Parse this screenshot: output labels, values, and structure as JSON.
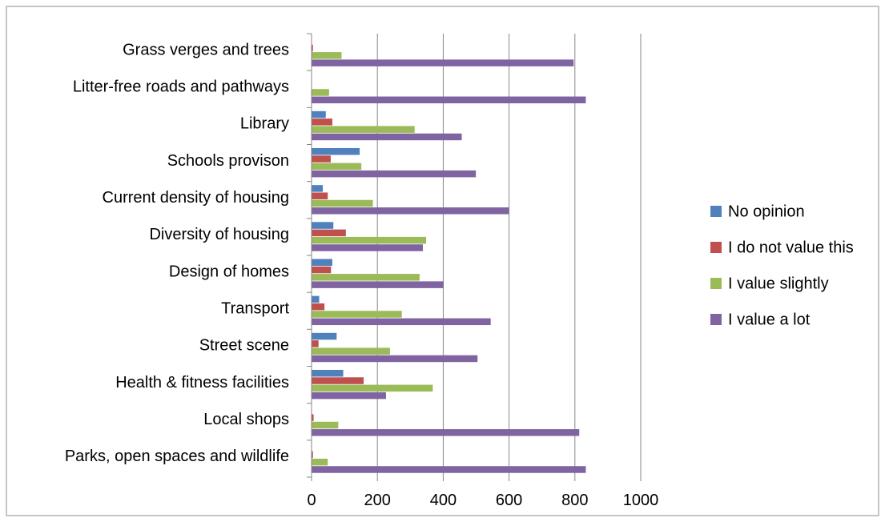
{
  "chart_data": {
    "type": "bar",
    "orientation": "horizontal",
    "categories": [
      "Grass verges and trees",
      "Litter-free roads and pathways",
      "Library",
      "Schools provison",
      "Current density of housing",
      "Diversity of housing",
      "Design of homes",
      "Transport",
      "Street scene",
      "Health & fitness facilities",
      "Local shops",
      "Parks, open spaces and wildlife"
    ],
    "series": [
      {
        "name": "No opinion",
        "color": "#4F81BD",
        "values": [
          0,
          0,
          42,
          145,
          33,
          65,
          62,
          22,
          75,
          95,
          0,
          0
        ]
      },
      {
        "name": "I do not value this",
        "color": "#C0504D",
        "values": [
          3,
          0,
          62,
          57,
          48,
          103,
          58,
          38,
          20,
          157,
          5,
          3
        ]
      },
      {
        "name": "I value slightly",
        "color": "#9BBB59",
        "values": [
          90,
          52,
          312,
          150,
          185,
          347,
          327,
          273,
          237,
          367,
          80,
          48
        ]
      },
      {
        "name": "I value a lot",
        "color": "#8064A2",
        "values": [
          795,
          832,
          455,
          498,
          598,
          337,
          400,
          543,
          503,
          225,
          812,
          832
        ]
      }
    ],
    "xlim": [
      0,
      1000
    ],
    "xticks": [
      "0",
      "200",
      "400",
      "600",
      "800",
      "1000"
    ],
    "grid": true,
    "legend_position": "right"
  }
}
